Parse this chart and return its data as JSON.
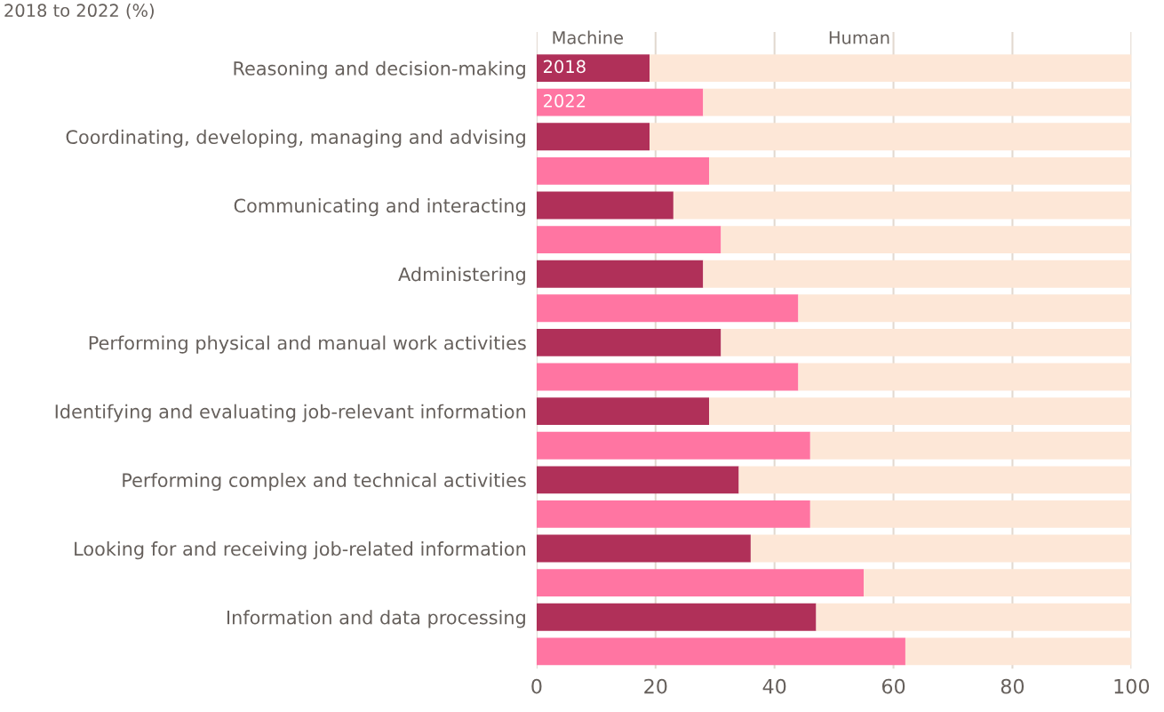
{
  "chart_data": {
    "type": "bar",
    "orientation": "horizontal",
    "stacked": true,
    "subtitle": "2018 to 2022 (%)",
    "annotations": [
      "Machine",
      "Human",
      "2018",
      "2022"
    ],
    "categories": [
      "Reasoning and decision-making",
      null,
      "Coordinating, developing, managing and advising",
      null,
      "Communicating and interacting",
      null,
      "Administering",
      null,
      "Performing physical and manual work activities",
      null,
      "Identifying and evaluating job-relevant information",
      null,
      "Performing complex and technical activities",
      null,
      "Looking for and receiving job-related information",
      null,
      "Information and data processing",
      null
    ],
    "series": [
      {
        "colors": [
          "#b03059",
          "#ff75a2",
          "#b03059",
          "#ff75a2",
          "#b03059",
          "#ff75a2",
          "#b03059",
          "#ff75a2",
          "#b03059",
          "#ff75a2",
          "#b03059",
          "#ff75a2",
          "#b03059",
          "#ff75a2",
          "#b03059",
          "#ff75a2",
          "#b03059",
          "#ff75a2"
        ],
        "values": [
          19,
          28,
          19,
          29,
          23,
          31,
          28,
          44,
          31,
          44,
          29,
          46,
          34,
          46,
          36,
          55,
          47,
          62
        ]
      },
      {
        "color": "#fde7d7",
        "values": [
          81,
          72,
          81,
          71,
          77,
          69,
          72,
          56,
          69,
          56,
          71,
          54,
          66,
          54,
          64,
          45,
          53,
          38
        ]
      }
    ],
    "xlim": [
      0,
      100
    ],
    "xticks": [
      0,
      20,
      40,
      60,
      80,
      100
    ],
    "grid": "x",
    "legend": false
  }
}
